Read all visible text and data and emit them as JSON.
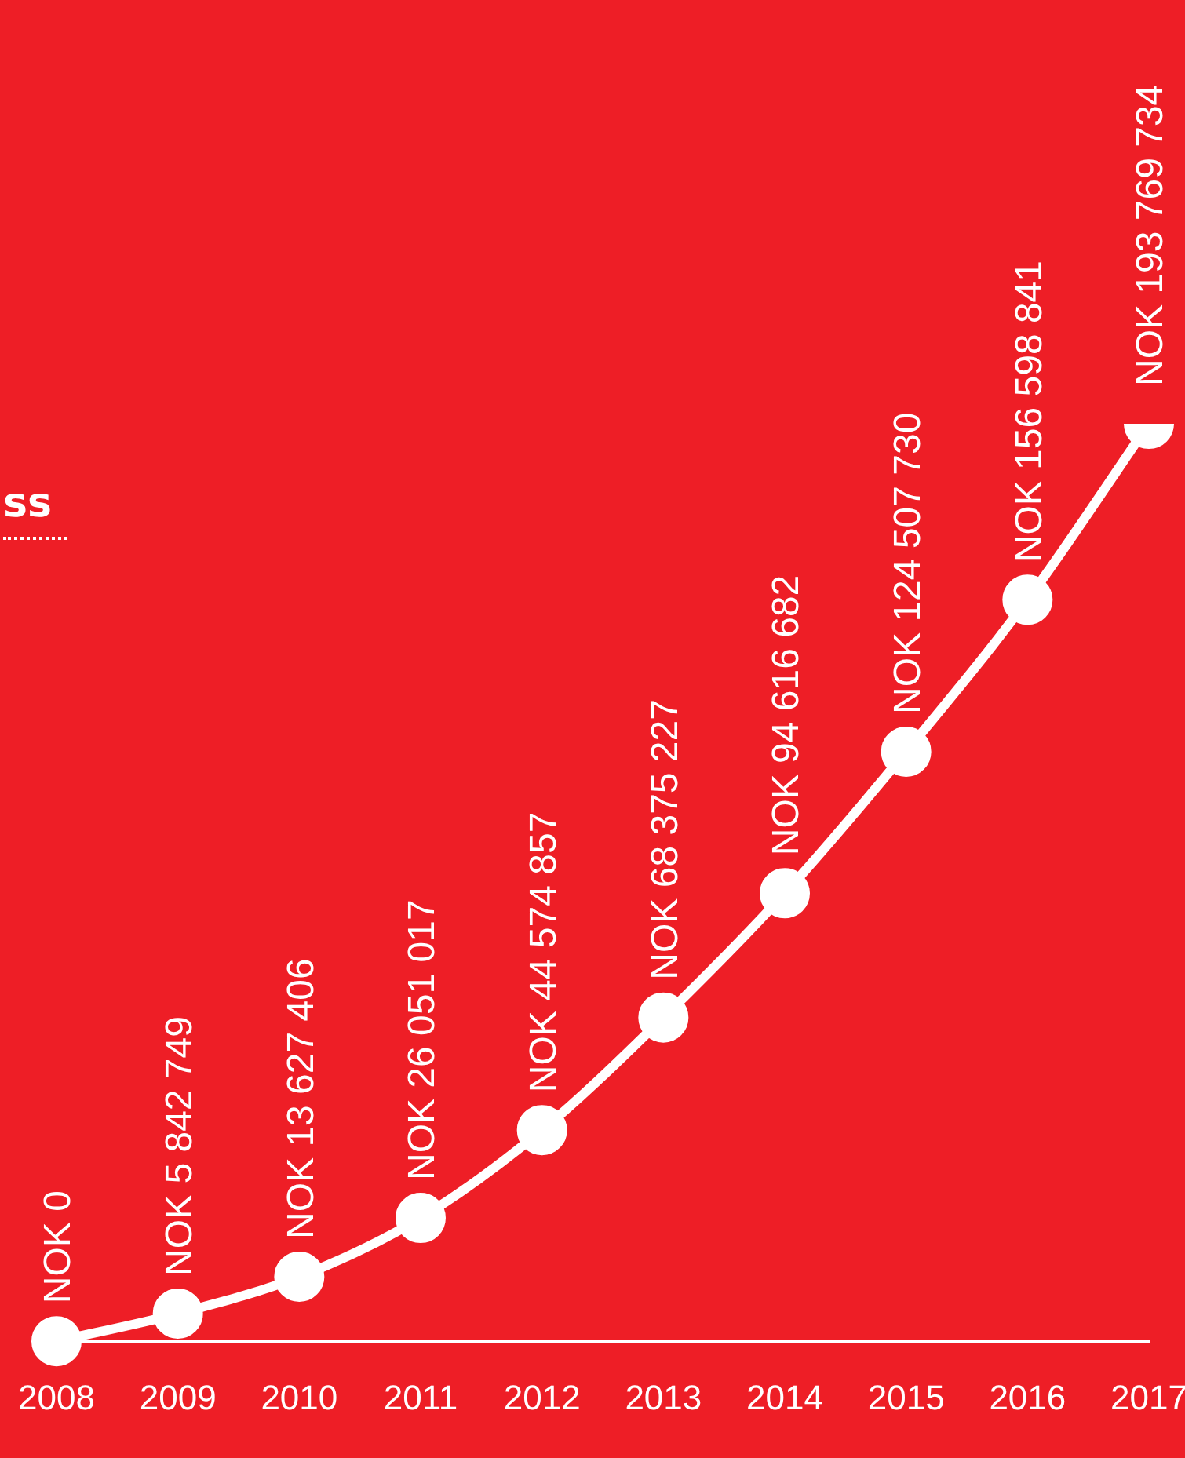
{
  "chart_data": {
    "type": "line",
    "categories": [
      "2008",
      "2009",
      "2010",
      "2011",
      "2012",
      "2013",
      "2014",
      "2015",
      "2016",
      "2017"
    ],
    "series": [
      {
        "color": "#ffffff",
        "values": [
          0,
          5842749,
          13627406,
          26051017,
          44574857,
          68375227,
          94616682,
          124507730,
          156598841,
          193769734
        ],
        "value_labels": [
          "NOK 0",
          "NOK 5 842 749",
          "NOK 13 627 406",
          "NOK 26 051 017",
          "NOK 44 574 857",
          "NOK 68 375 227",
          "NOK 94 616 682",
          "NOK 124 507 730",
          "NOK 156 598 841",
          "NOK 193 769 734"
        ]
      }
    ],
    "tick_labels": "x",
    "grid": false,
    "legend": false,
    "marker": "circle",
    "line_style": "solid",
    "annotations": [
      "ss"
    ]
  }
}
